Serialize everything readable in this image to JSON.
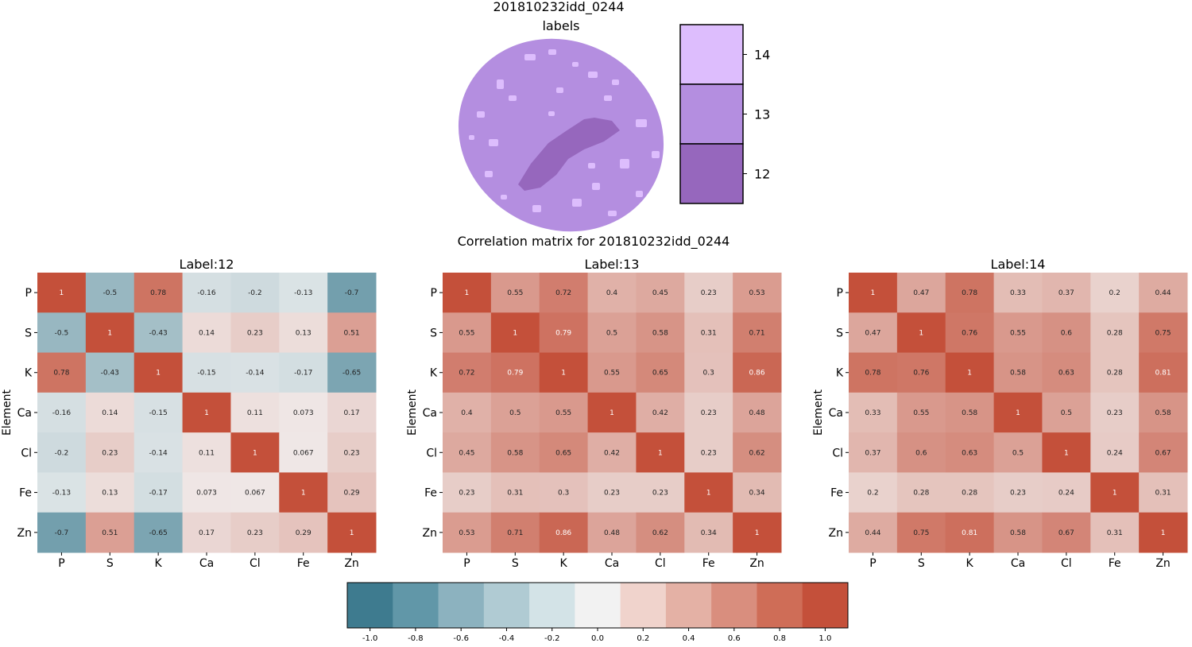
{
  "figure": {
    "sample_title": "201810232idd_0244",
    "image_title": "labels",
    "matrix_suptitle": "Correlation matrix for 201810232idd_0244"
  },
  "label_legend": {
    "items": [
      {
        "label": "14",
        "color": "#ddbdfd"
      },
      {
        "label": "13",
        "color": "#b48ee0"
      },
      {
        "label": "12",
        "color": "#9667bd"
      }
    ]
  },
  "colors": {
    "negative_end": "#3d7b8f",
    "neutral": "#f2f2f2",
    "positive_end": "#c4503a"
  },
  "chart_data": [
    {
      "type": "heatmap",
      "title": "Label:12",
      "ylabel": "Element",
      "x": [
        "P",
        "S",
        "K",
        "Ca",
        "Cl",
        "Fe",
        "Zn"
      ],
      "y": [
        "P",
        "S",
        "K",
        "Ca",
        "Cl",
        "Fe",
        "Zn"
      ],
      "values": [
        [
          1,
          -0.5,
          0.78,
          -0.16,
          -0.2,
          -0.13,
          -0.7
        ],
        [
          -0.5,
          1,
          -0.43,
          0.14,
          0.23,
          0.13,
          0.51
        ],
        [
          0.78,
          -0.43,
          1,
          -0.15,
          -0.14,
          -0.17,
          -0.65
        ],
        [
          -0.16,
          0.14,
          -0.15,
          1,
          0.11,
          0.073,
          0.17
        ],
        [
          -0.2,
          0.23,
          -0.14,
          0.11,
          1,
          0.067,
          0.23
        ],
        [
          -0.13,
          0.13,
          -0.17,
          0.073,
          0.067,
          1,
          0.29
        ],
        [
          -0.7,
          0.51,
          -0.65,
          0.17,
          0.23,
          0.29,
          1
        ]
      ]
    },
    {
      "type": "heatmap",
      "title": "Label:13",
      "ylabel": "Element",
      "x": [
        "P",
        "S",
        "K",
        "Ca",
        "Cl",
        "Fe",
        "Zn"
      ],
      "y": [
        "P",
        "S",
        "K",
        "Ca",
        "Cl",
        "Fe",
        "Zn"
      ],
      "values": [
        [
          1,
          0.55,
          0.72,
          0.4,
          0.45,
          0.23,
          0.53
        ],
        [
          0.55,
          1,
          0.79,
          0.5,
          0.58,
          0.31,
          0.71
        ],
        [
          0.72,
          0.79,
          1,
          0.55,
          0.65,
          0.3,
          0.86
        ],
        [
          0.4,
          0.5,
          0.55,
          1,
          0.42,
          0.23,
          0.48
        ],
        [
          0.45,
          0.58,
          0.65,
          0.42,
          1,
          0.23,
          0.62
        ],
        [
          0.23,
          0.31,
          0.3,
          0.23,
          0.23,
          1,
          0.34
        ],
        [
          0.53,
          0.71,
          0.86,
          0.48,
          0.62,
          0.34,
          1
        ]
      ]
    },
    {
      "type": "heatmap",
      "title": "Label:14",
      "ylabel": "Element",
      "x": [
        "P",
        "S",
        "K",
        "Ca",
        "Cl",
        "Fe",
        "Zn"
      ],
      "y": [
        "P",
        "S",
        "K",
        "Ca",
        "Cl",
        "Fe",
        "Zn"
      ],
      "values": [
        [
          1,
          0.47,
          0.78,
          0.33,
          0.37,
          0.2,
          0.44
        ],
        [
          0.47,
          1,
          0.76,
          0.55,
          0.6,
          0.28,
          0.75
        ],
        [
          0.78,
          0.76,
          1,
          0.58,
          0.63,
          0.28,
          0.81
        ],
        [
          0.33,
          0.55,
          0.58,
          1,
          0.5,
          0.23,
          0.58
        ],
        [
          0.37,
          0.6,
          0.63,
          0.5,
          1,
          0.24,
          0.67
        ],
        [
          0.2,
          0.28,
          0.28,
          0.23,
          0.24,
          1,
          0.31
        ],
        [
          0.44,
          0.75,
          0.81,
          0.58,
          0.67,
          0.31,
          1
        ]
      ]
    }
  ],
  "colorbar": {
    "ticks": [
      "-1.0",
      "-0.8",
      "-0.6",
      "-0.4",
      "-0.2",
      "0.0",
      "0.2",
      "0.4",
      "0.6",
      "0.8",
      "1.0"
    ],
    "bins": [
      "#3e7b8f",
      "#6197a8",
      "#8cb2bf",
      "#b0cbd3",
      "#d3e3e7",
      "#f2f2f2",
      "#f0d3cc",
      "#e4b1a5",
      "#d98e7e",
      "#cf6d57",
      "#c4503a"
    ]
  }
}
